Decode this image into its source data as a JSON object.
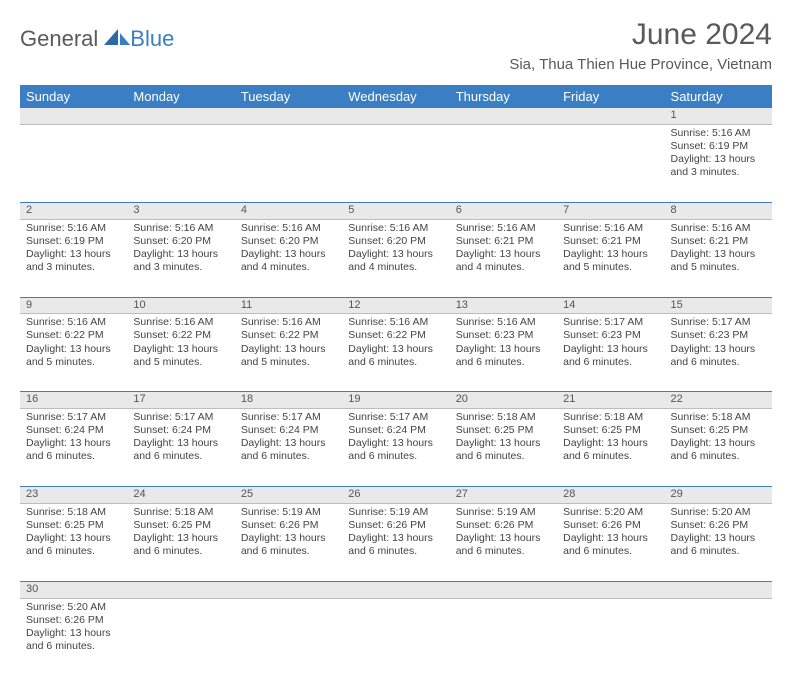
{
  "logo": {
    "part1": "General",
    "part2": "Blue"
  },
  "title": "June 2024",
  "location": "Sia, Thua Thien Hue Province, Vietnam",
  "colors": {
    "header_bg": "#3a7fc4",
    "header_text": "#ffffff",
    "daynum_bg": "#e9e9e9",
    "row_border": "#3a7fc4",
    "text": "#444444",
    "logo_gray": "#5a5a5a",
    "logo_blue": "#3a7fc4"
  },
  "weekdays": [
    "Sunday",
    "Monday",
    "Tuesday",
    "Wednesday",
    "Thursday",
    "Friday",
    "Saturday"
  ],
  "weeks": [
    [
      null,
      null,
      null,
      null,
      null,
      null,
      {
        "d": "1",
        "sr": "5:16 AM",
        "ss": "6:19 PM",
        "dl": "13 hours and 3 minutes."
      }
    ],
    [
      {
        "d": "2",
        "sr": "5:16 AM",
        "ss": "6:19 PM",
        "dl": "13 hours and 3 minutes."
      },
      {
        "d": "3",
        "sr": "5:16 AM",
        "ss": "6:20 PM",
        "dl": "13 hours and 3 minutes."
      },
      {
        "d": "4",
        "sr": "5:16 AM",
        "ss": "6:20 PM",
        "dl": "13 hours and 4 minutes."
      },
      {
        "d": "5",
        "sr": "5:16 AM",
        "ss": "6:20 PM",
        "dl": "13 hours and 4 minutes."
      },
      {
        "d": "6",
        "sr": "5:16 AM",
        "ss": "6:21 PM",
        "dl": "13 hours and 4 minutes."
      },
      {
        "d": "7",
        "sr": "5:16 AM",
        "ss": "6:21 PM",
        "dl": "13 hours and 5 minutes."
      },
      {
        "d": "8",
        "sr": "5:16 AM",
        "ss": "6:21 PM",
        "dl": "13 hours and 5 minutes."
      }
    ],
    [
      {
        "d": "9",
        "sr": "5:16 AM",
        "ss": "6:22 PM",
        "dl": "13 hours and 5 minutes."
      },
      {
        "d": "10",
        "sr": "5:16 AM",
        "ss": "6:22 PM",
        "dl": "13 hours and 5 minutes."
      },
      {
        "d": "11",
        "sr": "5:16 AM",
        "ss": "6:22 PM",
        "dl": "13 hours and 5 minutes."
      },
      {
        "d": "12",
        "sr": "5:16 AM",
        "ss": "6:22 PM",
        "dl": "13 hours and 6 minutes."
      },
      {
        "d": "13",
        "sr": "5:16 AM",
        "ss": "6:23 PM",
        "dl": "13 hours and 6 minutes."
      },
      {
        "d": "14",
        "sr": "5:17 AM",
        "ss": "6:23 PM",
        "dl": "13 hours and 6 minutes."
      },
      {
        "d": "15",
        "sr": "5:17 AM",
        "ss": "6:23 PM",
        "dl": "13 hours and 6 minutes."
      }
    ],
    [
      {
        "d": "16",
        "sr": "5:17 AM",
        "ss": "6:24 PM",
        "dl": "13 hours and 6 minutes."
      },
      {
        "d": "17",
        "sr": "5:17 AM",
        "ss": "6:24 PM",
        "dl": "13 hours and 6 minutes."
      },
      {
        "d": "18",
        "sr": "5:17 AM",
        "ss": "6:24 PM",
        "dl": "13 hours and 6 minutes."
      },
      {
        "d": "19",
        "sr": "5:17 AM",
        "ss": "6:24 PM",
        "dl": "13 hours and 6 minutes."
      },
      {
        "d": "20",
        "sr": "5:18 AM",
        "ss": "6:25 PM",
        "dl": "13 hours and 6 minutes."
      },
      {
        "d": "21",
        "sr": "5:18 AM",
        "ss": "6:25 PM",
        "dl": "13 hours and 6 minutes."
      },
      {
        "d": "22",
        "sr": "5:18 AM",
        "ss": "6:25 PM",
        "dl": "13 hours and 6 minutes."
      }
    ],
    [
      {
        "d": "23",
        "sr": "5:18 AM",
        "ss": "6:25 PM",
        "dl": "13 hours and 6 minutes."
      },
      {
        "d": "24",
        "sr": "5:18 AM",
        "ss": "6:25 PM",
        "dl": "13 hours and 6 minutes."
      },
      {
        "d": "25",
        "sr": "5:19 AM",
        "ss": "6:26 PM",
        "dl": "13 hours and 6 minutes."
      },
      {
        "d": "26",
        "sr": "5:19 AM",
        "ss": "6:26 PM",
        "dl": "13 hours and 6 minutes."
      },
      {
        "d": "27",
        "sr": "5:19 AM",
        "ss": "6:26 PM",
        "dl": "13 hours and 6 minutes."
      },
      {
        "d": "28",
        "sr": "5:20 AM",
        "ss": "6:26 PM",
        "dl": "13 hours and 6 minutes."
      },
      {
        "d": "29",
        "sr": "5:20 AM",
        "ss": "6:26 PM",
        "dl": "13 hours and 6 minutes."
      }
    ],
    [
      {
        "d": "30",
        "sr": "5:20 AM",
        "ss": "6:26 PM",
        "dl": "13 hours and 6 minutes."
      },
      null,
      null,
      null,
      null,
      null,
      null
    ]
  ],
  "labels": {
    "sunrise": "Sunrise:",
    "sunset": "Sunset:",
    "daylight": "Daylight:"
  }
}
